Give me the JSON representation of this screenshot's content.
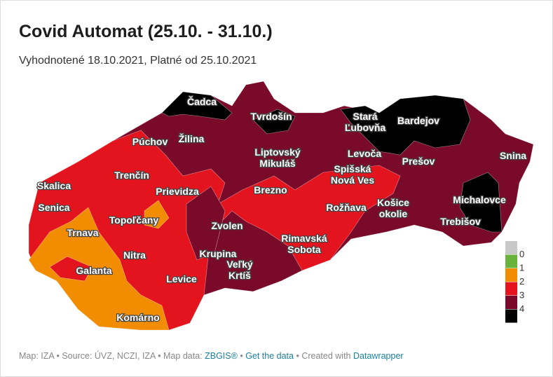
{
  "header": {
    "title": "Covid Automat (25.10. - 31.10.)",
    "subtitle": "Vyhodnotené 18.10.2021, Platné od 25.10.2021"
  },
  "districts": [
    {
      "lines": [
        "Čadca"
      ]
    },
    {
      "lines": [
        "Tvrdošín"
      ]
    },
    {
      "lines": [
        "Stará",
        "Ľubovňa"
      ]
    },
    {
      "lines": [
        "Bardejov"
      ]
    },
    {
      "lines": [
        "Púchov"
      ]
    },
    {
      "lines": [
        "Žilina"
      ]
    },
    {
      "lines": [
        "Liptovský",
        "Mikuláš"
      ]
    },
    {
      "lines": [
        "Levoča"
      ]
    },
    {
      "lines": [
        "Prešov"
      ]
    },
    {
      "lines": [
        "Snina"
      ]
    },
    {
      "lines": [
        "Skalica"
      ]
    },
    {
      "lines": [
        "Trenčín"
      ]
    },
    {
      "lines": [
        "Prievidza"
      ]
    },
    {
      "lines": [
        "Brezno"
      ]
    },
    {
      "lines": [
        "Spišská",
        "Nová Ves"
      ]
    },
    {
      "lines": [
        "Senica"
      ]
    },
    {
      "lines": [
        "Topoľčany"
      ]
    },
    {
      "lines": [
        "Rožňava"
      ]
    },
    {
      "lines": [
        "Košice",
        "okolie"
      ]
    },
    {
      "lines": [
        "Michalovce"
      ]
    },
    {
      "lines": [
        "Trnava"
      ]
    },
    {
      "lines": [
        "Zvolen"
      ]
    },
    {
      "lines": [
        "Trebišov"
      ]
    },
    {
      "lines": [
        "Nitra"
      ]
    },
    {
      "lines": [
        "Krupina"
      ]
    },
    {
      "lines": [
        "Rimavská",
        "Sobota"
      ]
    },
    {
      "lines": [
        "Galanta"
      ]
    },
    {
      "lines": [
        "Levice"
      ]
    },
    {
      "lines": [
        "Veľký",
        "Krtíš"
      ]
    },
    {
      "lines": [
        "Komárno"
      ]
    }
  ],
  "legend": {
    "colors": [
      "#c8c8c8",
      "#6ab23e",
      "#f28c00",
      "#e3141d",
      "#7a0a2a",
      "#000000"
    ],
    "labels": [
      0,
      1,
      2,
      3,
      4
    ]
  },
  "footer": {
    "prefix": "Map: IZA • Source: ÚVZ, NCZI, IZA • Map data:",
    "link1": "ZBGIS®",
    "sep": "•",
    "link2": "Get the data",
    "created": "• Created with",
    "link3": "Datawrapper"
  }
}
